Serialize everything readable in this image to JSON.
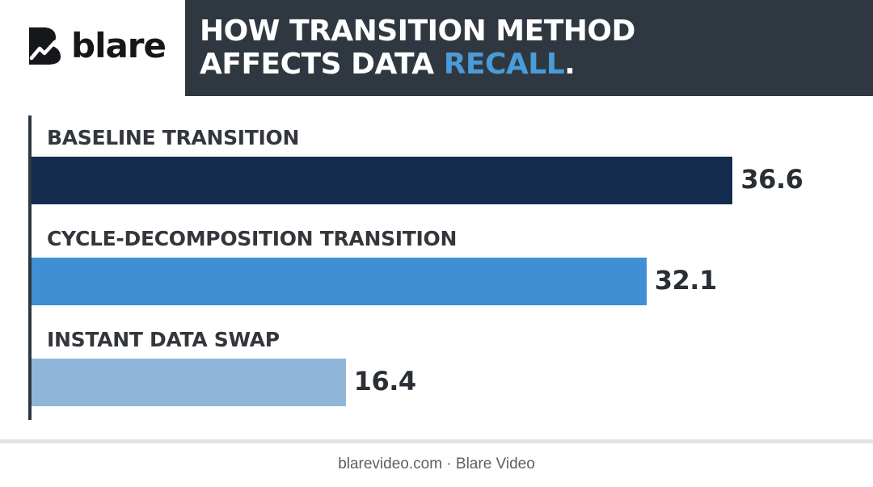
{
  "brand": {
    "name": "blare"
  },
  "header": {
    "title_line1": "HOW TRANSITION METHOD",
    "title_line2_prefix": "AFFECTS DATA ",
    "title_line2_highlight": "RECALL",
    "title_line2_suffix": "."
  },
  "chart_data": {
    "type": "bar",
    "orientation": "horizontal",
    "title": "HOW TRANSITION METHOD AFFECTS DATA RECALL.",
    "categories": [
      "BASELINE TRANSITION",
      "CYCLE-DECOMPOSITION TRANSITION",
      "INSTANT DATA SWAP"
    ],
    "values": [
      36.6,
      32.1,
      16.4
    ],
    "value_labels": [
      "36.6",
      "32.1",
      "16.4"
    ],
    "colors": [
      "#132c4e",
      "#3f8fd2",
      "#8fb6d8"
    ],
    "xlabel": "",
    "ylabel": "",
    "grid": false,
    "legend": "none"
  },
  "footer": {
    "text": "blarevideo.com · Blare Video"
  },
  "colors": {
    "header_bg": "#2f3840",
    "accent": "#4a9bd8"
  }
}
